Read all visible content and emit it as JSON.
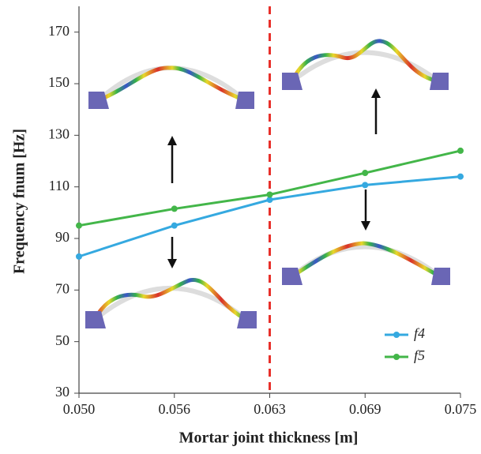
{
  "chart_data": {
    "type": "line",
    "x_label": "Mortar joint thickness [m]",
    "y_label": "Frequency fnum [Hz]",
    "x": [
      0.05,
      0.05625,
      0.0625,
      0.06875,
      0.075
    ],
    "series": [
      {
        "name": "f4",
        "color": "#35a9e0",
        "values": [
          83,
          95,
          105,
          110.7,
          114
        ]
      },
      {
        "name": "f5",
        "color": "#43b649",
        "values": [
          95,
          101.5,
          107,
          115.4,
          124
        ]
      }
    ],
    "xlim": [
      0.05,
      0.075
    ],
    "xticks": [
      {
        "value": 0.05,
        "label": "0.050"
      },
      {
        "value": 0.05625,
        "label": "0.056"
      },
      {
        "value": 0.0625,
        "label": "0.063"
      },
      {
        "value": 0.06875,
        "label": "0.069"
      },
      {
        "value": 0.075,
        "label": "0.075"
      }
    ],
    "ylim": [
      30,
      180
    ],
    "yticks": [
      30,
      50,
      70,
      90,
      110,
      130,
      150,
      170
    ],
    "vline": {
      "x": 0.0625,
      "color": "#e8302a"
    },
    "legend": "lower right"
  }
}
